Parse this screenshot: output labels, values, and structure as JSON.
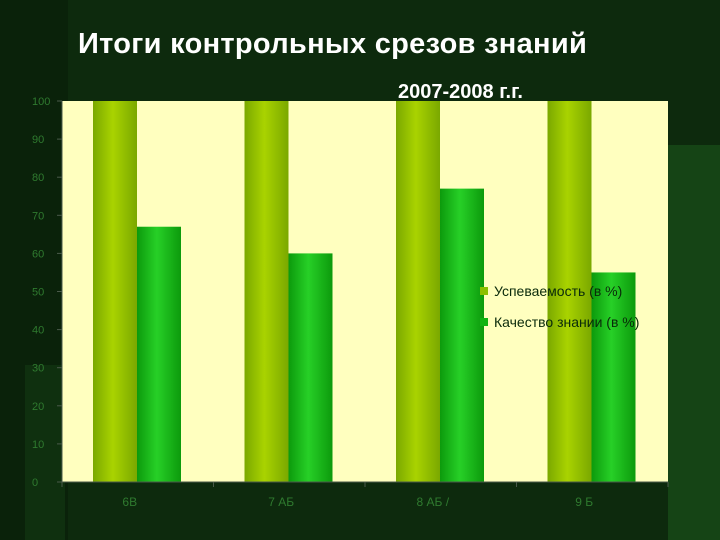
{
  "slide": {
    "title": "Итоги контрольных срезов знаний"
  },
  "colors": {
    "background": "#0d2a0d",
    "plot_area": "#ffffbf",
    "series_1": "#8cc000",
    "series_2": "#11b411",
    "axis_text": "#2f7a2f"
  },
  "chart_data": {
    "type": "bar",
    "title": "2007-2008 г.г.",
    "categories": [
      "6В",
      "7 АБ",
      "8 АБ /",
      "9 Б"
    ],
    "series": [
      {
        "name": "Успеваемость (в %)",
        "values": [
          100,
          100,
          100,
          100
        ]
      },
      {
        "name": "Качество знании (в %)",
        "values": [
          67,
          60,
          77,
          55
        ]
      }
    ],
    "ylim": [
      0,
      100
    ],
    "yticks": [
      "0",
      "10",
      "20",
      "30",
      "40",
      "50",
      "60",
      "70",
      "80",
      "90",
      "100"
    ],
    "grid": false,
    "legend_position": "right"
  }
}
